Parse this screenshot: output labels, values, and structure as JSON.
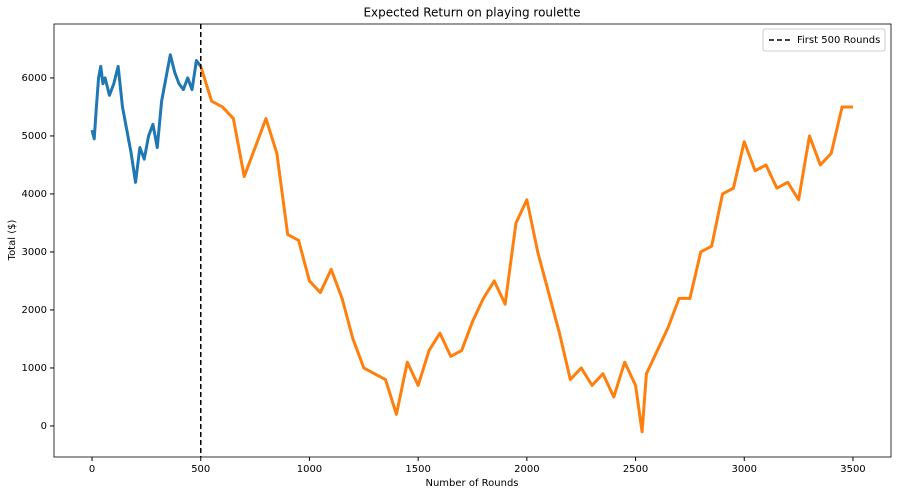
{
  "chart_data": {
    "type": "line",
    "title": "Expected Return on playing roulette",
    "xlabel": "Number of Rounds",
    "ylabel": "Total ($)",
    "xlim": [
      -175,
      3675
    ],
    "ylim": [
      -535,
      6930
    ],
    "xticks": [
      0,
      500,
      1000,
      1500,
      2000,
      2500,
      3000,
      3500
    ],
    "yticks": [
      0,
      1000,
      2000,
      3000,
      4000,
      5000,
      6000
    ],
    "vline": {
      "x": 500,
      "label": "First 500 Rounds",
      "color": "#000000"
    },
    "legend": "upper right",
    "series": [
      {
        "color": "#1f77b4",
        "x": [
          0,
          10,
          20,
          30,
          40,
          50,
          60,
          80,
          100,
          120,
          140,
          160,
          180,
          200,
          220,
          240,
          260,
          280,
          300,
          320,
          340,
          360,
          380,
          400,
          420,
          440,
          460,
          480,
          500
        ],
        "values": [
          5100,
          4950,
          5500,
          6000,
          6200,
          5900,
          6000,
          5700,
          5900,
          6200,
          5500,
          5100,
          4700,
          4200,
          4800,
          4600,
          5000,
          5200,
          4800,
          5600,
          6000,
          6400,
          6100,
          5900,
          5800,
          6000,
          5800,
          6300,
          6200
        ]
      },
      {
        "color": "#ff7f0e",
        "x": [
          500,
          550,
          600,
          650,
          700,
          750,
          800,
          850,
          900,
          950,
          1000,
          1050,
          1100,
          1150,
          1200,
          1250,
          1300,
          1350,
          1400,
          1450,
          1500,
          1550,
          1600,
          1650,
          1700,
          1750,
          1800,
          1850,
          1900,
          1950,
          2000,
          2050,
          2100,
          2150,
          2200,
          2250,
          2300,
          2350,
          2400,
          2450,
          2500,
          2530,
          2550,
          2600,
          2650,
          2700,
          2750,
          2800,
          2850,
          2900,
          2950,
          3000,
          3050,
          3100,
          3150,
          3200,
          3250,
          3300,
          3350,
          3400,
          3450,
          3500
        ],
        "values": [
          6200,
          5600,
          5500,
          5300,
          4300,
          4800,
          5300,
          4700,
          3300,
          3200,
          2500,
          2300,
          2700,
          2200,
          1500,
          1000,
          900,
          800,
          200,
          1100,
          700,
          1300,
          1600,
          1200,
          1300,
          1800,
          2200,
          2500,
          2100,
          3500,
          3900,
          3000,
          2300,
          1600,
          800,
          1000,
          700,
          900,
          500,
          1100,
          700,
          -100,
          900,
          1300,
          1700,
          2200,
          2200,
          3000,
          3100,
          4000,
          4100,
          4900,
          4400,
          4500,
          4100,
          4200,
          3900,
          5000,
          4500,
          4700,
          5500,
          5500
        ]
      }
    ]
  }
}
